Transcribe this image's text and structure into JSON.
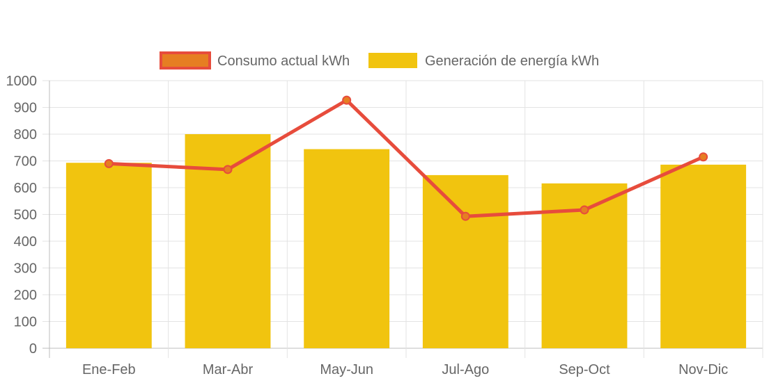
{
  "chart_data": {
    "type": "bar",
    "categories": [
      "Ene-Feb",
      "Mar-Abr",
      "May-Jun",
      "Jul-Ago",
      "Sep-Oct",
      "Nov-Dic"
    ],
    "series": [
      {
        "name": "Consumo actual kWh",
        "type": "line",
        "values": [
          690,
          668,
          927,
          493,
          517,
          715
        ],
        "color": "#E74C3C",
        "point_color": "#E67E22"
      },
      {
        "name": "Generación de energía kWh",
        "type": "bar",
        "values": [
          693,
          800,
          744,
          647,
          616,
          686
        ],
        "color": "#F1C40F"
      }
    ],
    "yticks": [
      "0",
      "100",
      "200",
      "300",
      "400",
      "500",
      "600",
      "700",
      "800",
      "900",
      "1000"
    ],
    "ylim": [
      0,
      1000
    ],
    "grid": true,
    "legend_position": "top-center",
    "title": "",
    "xlabel": "",
    "ylabel": ""
  }
}
